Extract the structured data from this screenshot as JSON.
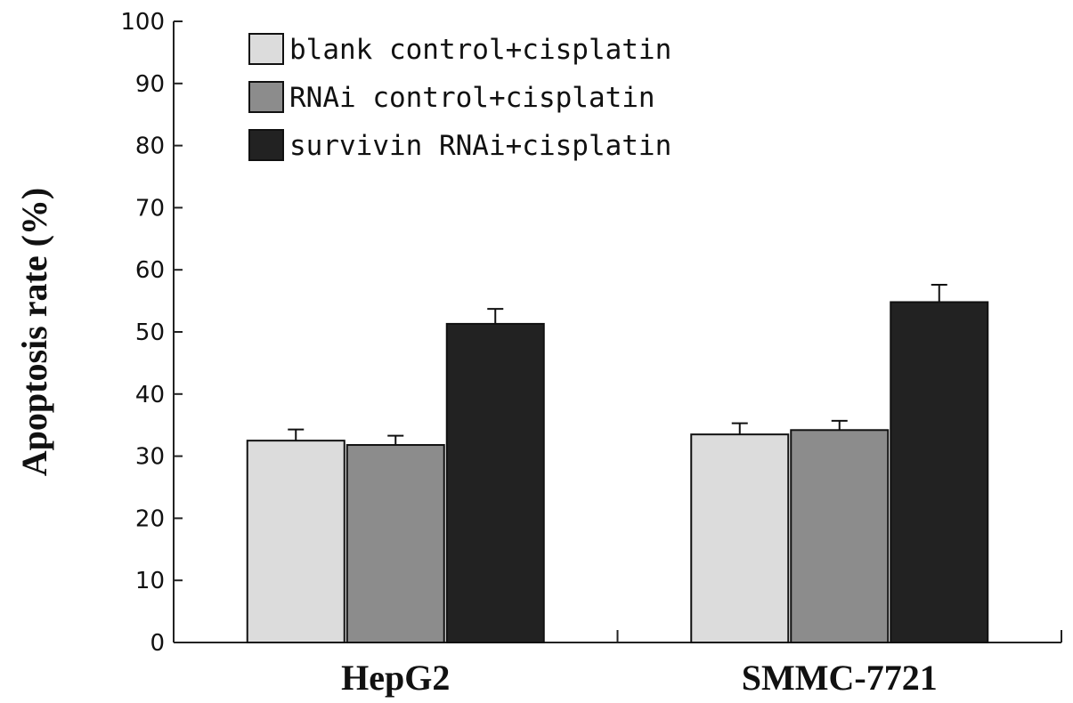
{
  "chart_data": {
    "type": "bar",
    "categories": [
      "HepG2",
      "SMMC-7721"
    ],
    "series": [
      {
        "name": "blank control+cisplatin",
        "values": [
          32.5,
          33.5
        ],
        "errors": [
          1.8,
          1.8
        ],
        "color": "#dcdcdc"
      },
      {
        "name": "RNAi control+cisplatin",
        "values": [
          31.8,
          34.2
        ],
        "errors": [
          1.5,
          1.5
        ],
        "color": "#8c8c8c"
      },
      {
        "name": "survivin RNAi+cisplatin",
        "values": [
          51.3,
          54.8
        ],
        "errors": [
          2.4,
          2.8
        ],
        "color": "#222222"
      }
    ],
    "ylabel": "Apoptosis rate (%)",
    "xlabel": "",
    "ylim": [
      0,
      100
    ],
    "yticks": [
      0,
      10,
      20,
      30,
      40,
      50,
      60,
      70,
      80,
      90,
      100
    ],
    "legend_position": "top-left",
    "grid": false
  }
}
